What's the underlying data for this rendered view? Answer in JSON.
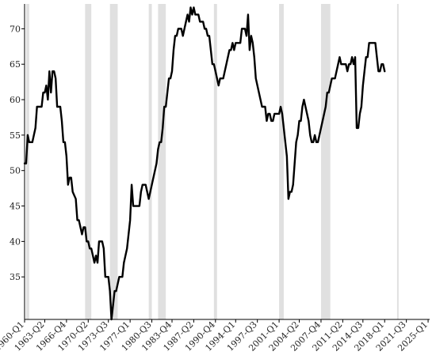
{
  "chart_data": {
    "type": "line",
    "title": "",
    "xlabel": "",
    "ylabel": "",
    "xlim": [
      1960.0,
      2025.25
    ],
    "ylim": [
      29,
      73.5
    ],
    "grid": false,
    "legend": "none",
    "line_color": "#000000",
    "recession_color": "#e0e0e0",
    "y_ticks": [
      35,
      40,
      45,
      50,
      55,
      60,
      65,
      70
    ],
    "x_ticks": [
      {
        "label": "1960-Q1",
        "t": 1960.0
      },
      {
        "label": "1963-Q2",
        "t": 1963.25
      },
      {
        "label": "1966-Q4",
        "t": 1966.75
      },
      {
        "label": "1970-Q2",
        "t": 1970.25
      },
      {
        "label": "1973-Q3",
        "t": 1973.5
      },
      {
        "label": "1977-Q1",
        "t": 1977.0
      },
      {
        "label": "1980-Q3",
        "t": 1980.5
      },
      {
        "label": "1983-Q4",
        "t": 1983.75
      },
      {
        "label": "1987-Q2",
        "t": 1987.25
      },
      {
        "label": "1990-Q4",
        "t": 1990.75
      },
      {
        "label": "1994-Q1",
        "t": 1994.0
      },
      {
        "label": "1997-Q3",
        "t": 1997.5
      },
      {
        "label": "2001-Q1",
        "t": 2001.0
      },
      {
        "label": "2004-Q2",
        "t": 2004.25
      },
      {
        "label": "2007-Q4",
        "t": 2007.75
      },
      {
        "label": "2011-Q2",
        "t": 2011.25
      },
      {
        "label": "2014-Q3",
        "t": 2014.5
      },
      {
        "label": "2018-Q1",
        "t": 2018.0
      },
      {
        "label": "2021-Q3",
        "t": 2021.5
      },
      {
        "label": "2025-Q1",
        "t": 2025.0
      }
    ],
    "recessions": [
      {
        "start": 1960.25,
        "end": 1960.75
      },
      {
        "start": 1969.75,
        "end": 1970.75
      },
      {
        "start": 1973.75,
        "end": 1975.0
      },
      {
        "start": 1980.0,
        "end": 1980.5
      },
      {
        "start": 1981.5,
        "end": 1982.75
      },
      {
        "start": 1990.5,
        "end": 1991.0
      },
      {
        "start": 2001.0,
        "end": 2001.75
      },
      {
        "start": 2007.75,
        "end": 2009.25
      },
      {
        "start": 2020.0,
        "end": 2020.25
      }
    ],
    "series": [
      {
        "points": [
          [
            1960.0,
            51
          ],
          [
            1960.25,
            51
          ],
          [
            1960.5,
            55
          ],
          [
            1960.75,
            54
          ],
          [
            1961.25,
            54
          ],
          [
            1961.75,
            56
          ],
          [
            1962.0,
            59
          ],
          [
            1962.75,
            59
          ],
          [
            1963.0,
            61
          ],
          [
            1963.25,
            61
          ],
          [
            1963.5,
            62
          ],
          [
            1963.75,
            60
          ],
          [
            1964.0,
            64
          ],
          [
            1964.25,
            61
          ],
          [
            1964.5,
            64
          ],
          [
            1964.75,
            64
          ],
          [
            1965.0,
            63
          ],
          [
            1965.25,
            59
          ],
          [
            1965.75,
            59
          ],
          [
            1966.0,
            57
          ],
          [
            1966.25,
            54
          ],
          [
            1966.5,
            54
          ],
          [
            1966.75,
            52
          ],
          [
            1967.0,
            48
          ],
          [
            1967.25,
            49
          ],
          [
            1967.5,
            49
          ],
          [
            1967.75,
            47
          ],
          [
            1968.25,
            46
          ],
          [
            1968.5,
            43
          ],
          [
            1968.75,
            43
          ],
          [
            1969.0,
            42
          ],
          [
            1969.25,
            41
          ],
          [
            1969.5,
            42
          ],
          [
            1969.75,
            42
          ],
          [
            1970.0,
            40
          ],
          [
            1970.25,
            40
          ],
          [
            1970.5,
            39
          ],
          [
            1970.75,
            39
          ],
          [
            1971.0,
            38
          ],
          [
            1971.25,
            37
          ],
          [
            1971.5,
            38
          ],
          [
            1971.75,
            37
          ],
          [
            1972.0,
            40
          ],
          [
            1972.5,
            40
          ],
          [
            1972.75,
            39
          ],
          [
            1973.0,
            35
          ],
          [
            1973.5,
            35
          ],
          [
            1973.75,
            33
          ],
          [
            1974.0,
            29
          ],
          [
            1974.25,
            31
          ],
          [
            1974.5,
            33
          ],
          [
            1974.75,
            33
          ],
          [
            1975.0,
            34
          ],
          [
            1975.25,
            35
          ],
          [
            1975.75,
            35
          ],
          [
            1976.0,
            37
          ],
          [
            1976.5,
            39
          ],
          [
            1976.75,
            41
          ],
          [
            1977.0,
            43
          ],
          [
            1977.25,
            48
          ],
          [
            1977.5,
            45
          ],
          [
            1978.0,
            45
          ],
          [
            1978.5,
            45
          ],
          [
            1978.75,
            47
          ],
          [
            1979.0,
            48
          ],
          [
            1979.5,
            48
          ],
          [
            1979.75,
            47
          ],
          [
            1980.0,
            46
          ],
          [
            1980.5,
            48
          ],
          [
            1981.0,
            50
          ],
          [
            1981.25,
            51
          ],
          [
            1981.5,
            53
          ],
          [
            1981.75,
            54
          ],
          [
            1982.0,
            54
          ],
          [
            1982.25,
            56
          ],
          [
            1982.5,
            59
          ],
          [
            1982.75,
            59
          ],
          [
            1983.0,
            61
          ],
          [
            1983.25,
            63
          ],
          [
            1983.5,
            63
          ],
          [
            1983.75,
            64
          ],
          [
            1984.0,
            67
          ],
          [
            1984.25,
            69
          ],
          [
            1984.5,
            69
          ],
          [
            1984.75,
            70
          ],
          [
            1985.25,
            70
          ],
          [
            1985.5,
            69
          ],
          [
            1985.75,
            70
          ],
          [
            1986.0,
            71
          ],
          [
            1986.25,
            72
          ],
          [
            1986.5,
            71
          ],
          [
            1986.75,
            73
          ],
          [
            1987.0,
            72
          ],
          [
            1987.25,
            73
          ],
          [
            1987.5,
            72
          ],
          [
            1988.0,
            72
          ],
          [
            1988.25,
            71
          ],
          [
            1988.75,
            71
          ],
          [
            1989.0,
            70
          ],
          [
            1989.25,
            70
          ],
          [
            1989.5,
            69
          ],
          [
            1989.75,
            69
          ],
          [
            1990.0,
            67
          ],
          [
            1990.25,
            65
          ],
          [
            1990.5,
            65
          ],
          [
            1990.75,
            64
          ],
          [
            1991.0,
            63
          ],
          [
            1991.25,
            62
          ],
          [
            1991.5,
            63
          ],
          [
            1992.0,
            63
          ],
          [
            1992.25,
            64
          ],
          [
            1992.5,
            65
          ],
          [
            1992.75,
            66
          ],
          [
            1993.0,
            67
          ],
          [
            1993.25,
            67
          ],
          [
            1993.5,
            68
          ],
          [
            1993.75,
            67
          ],
          [
            1994.0,
            68
          ],
          [
            1994.25,
            68
          ],
          [
            1994.75,
            68
          ],
          [
            1995.0,
            70
          ],
          [
            1995.25,
            70
          ],
          [
            1995.5,
            70
          ],
          [
            1995.75,
            69
          ],
          [
            1996.0,
            72
          ],
          [
            1996.25,
            67
          ],
          [
            1996.5,
            69
          ],
          [
            1996.75,
            68
          ],
          [
            1997.0,
            66
          ],
          [
            1997.25,
            63
          ],
          [
            1997.5,
            62
          ],
          [
            1997.75,
            61
          ],
          [
            1998.0,
            60
          ],
          [
            1998.25,
            59
          ],
          [
            1998.5,
            59
          ],
          [
            1998.75,
            59
          ],
          [
            1999.0,
            57
          ],
          [
            1999.25,
            58
          ],
          [
            1999.5,
            58
          ],
          [
            1999.75,
            57
          ],
          [
            2000.0,
            57
          ],
          [
            2000.25,
            58
          ],
          [
            2000.5,
            58
          ],
          [
            2000.75,
            58
          ],
          [
            2001.0,
            58
          ],
          [
            2001.25,
            59
          ],
          [
            2001.5,
            58
          ],
          [
            2001.75,
            56
          ],
          [
            2002.0,
            54
          ],
          [
            2002.25,
            52
          ],
          [
            2002.5,
            46
          ],
          [
            2002.75,
            47
          ],
          [
            2003.0,
            47
          ],
          [
            2003.25,
            48
          ],
          [
            2003.5,
            51
          ],
          [
            2003.75,
            54
          ],
          [
            2004.0,
            55
          ],
          [
            2004.25,
            57
          ],
          [
            2004.5,
            57
          ],
          [
            2004.75,
            59
          ],
          [
            2005.0,
            60
          ],
          [
            2005.25,
            59
          ],
          [
            2005.5,
            58
          ],
          [
            2005.75,
            57
          ],
          [
            2006.0,
            55
          ],
          [
            2006.25,
            54
          ],
          [
            2006.5,
            54
          ],
          [
            2006.75,
            55
          ],
          [
            2007.0,
            54
          ],
          [
            2007.25,
            54
          ],
          [
            2007.5,
            55
          ],
          [
            2007.75,
            56
          ],
          [
            2008.0,
            57
          ],
          [
            2008.25,
            58
          ],
          [
            2008.5,
            59
          ],
          [
            2008.75,
            61
          ],
          [
            2009.0,
            61
          ],
          [
            2009.25,
            62
          ],
          [
            2009.5,
            63
          ],
          [
            2010.0,
            63
          ],
          [
            2010.25,
            64
          ],
          [
            2010.5,
            65
          ],
          [
            2010.75,
            66
          ],
          [
            2011.0,
            65
          ],
          [
            2011.25,
            65
          ],
          [
            2011.75,
            65
          ],
          [
            2012.0,
            64
          ],
          [
            2012.25,
            65
          ],
          [
            2012.5,
            65
          ],
          [
            2012.75,
            66
          ],
          [
            2013.0,
            65
          ],
          [
            2013.25,
            66
          ],
          [
            2013.5,
            56
          ],
          [
            2013.75,
            56
          ],
          [
            2014.0,
            58
          ],
          [
            2014.25,
            59
          ],
          [
            2014.5,
            62
          ],
          [
            2014.75,
            64
          ],
          [
            2015.0,
            66
          ],
          [
            2015.25,
            66
          ],
          [
            2015.5,
            68
          ],
          [
            2016.0,
            68
          ],
          [
            2016.5,
            68
          ],
          [
            2016.75,
            66
          ],
          [
            2017.0,
            64
          ],
          [
            2017.25,
            64
          ],
          [
            2017.5,
            65
          ],
          [
            2017.75,
            65
          ],
          [
            2018.0,
            64
          ]
        ]
      }
    ]
  }
}
